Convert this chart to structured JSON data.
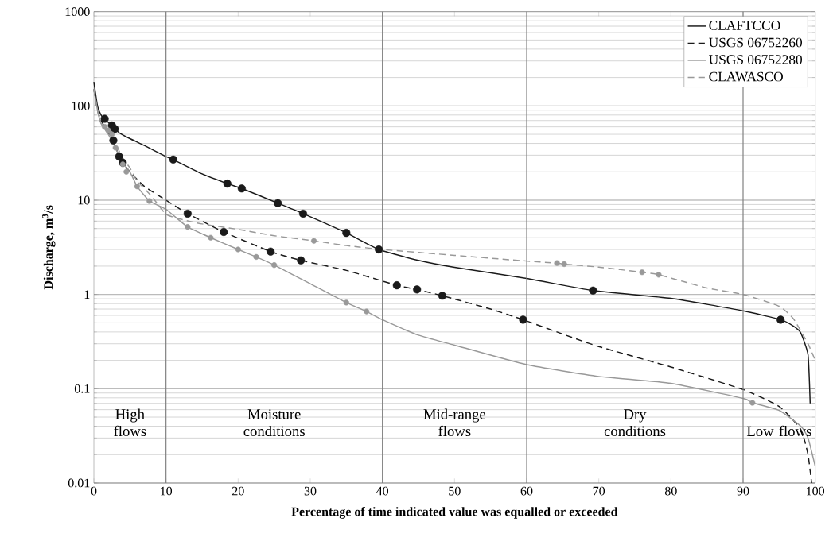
{
  "chart_data": {
    "type": "line",
    "xlabel": "Percentage of time indicated value was equalled or exceeded",
    "ylabel": "Discharge, m$^{3}$/s",
    "xlim": [
      0,
      100
    ],
    "xticks": [
      0,
      10,
      20,
      30,
      40,
      50,
      60,
      70,
      80,
      90,
      100
    ],
    "ylim": [
      0.01,
      1000
    ],
    "yticks": [
      0.01,
      0.1,
      1,
      10,
      100,
      1000
    ],
    "log": "y",
    "grid": "y",
    "legend": "top right",
    "marker": "none",
    "series": [
      {
        "name": "CLAFTCCO",
        "color": "#1a1a1a",
        "line_style": "solid",
        "x": [
          0,
          0.5,
          1,
          1.5,
          2.5,
          3,
          3.5,
          5,
          7,
          10,
          11,
          15,
          18.5,
          20.5,
          25.5,
          29,
          35,
          39.5,
          45,
          50,
          60,
          69.2,
          80,
          90,
          95.2,
          97,
          98,
          99,
          99.3
        ],
        "values": [
          180,
          100,
          80,
          72,
          62,
          57,
          52,
          45,
          38,
          29,
          27,
          19,
          15,
          13.3,
          9.3,
          7.2,
          4.5,
          3.0,
          2.3,
          1.94,
          1.48,
          1.1,
          0.91,
          0.67,
          0.54,
          0.46,
          0.39,
          0.23,
          0.07
        ]
      },
      {
        "name": "USGS 06752260",
        "color": "#1a1a1a",
        "line_style": "dashed",
        "x": [
          0,
          0.5,
          1,
          2,
          2.7,
          3.5,
          4,
          5,
          7,
          10,
          13,
          18,
          24.5,
          28.7,
          35,
          42,
          44.8,
          48.3,
          55,
          59.5,
          65,
          70,
          80,
          90,
          95,
          98,
          99,
          99.5
        ],
        "values": [
          150,
          90,
          70,
          52,
          43,
          29,
          25,
          20,
          14,
          10,
          7.2,
          4.6,
          2.85,
          2.3,
          1.8,
          1.25,
          1.13,
          0.97,
          0.7,
          0.54,
          0.38,
          0.28,
          0.17,
          0.098,
          0.065,
          0.037,
          0.02,
          0.01
        ]
      },
      {
        "name": "USGS 06752280",
        "color": "#999999",
        "line_style": "solid",
        "x": [
          0,
          0.5,
          1,
          2,
          3,
          4,
          5,
          6,
          7.7,
          10,
          13,
          16.2,
          20,
          22.5,
          25,
          30,
          35,
          37.8,
          40,
          45,
          50,
          60,
          70,
          80,
          90,
          91.3,
          95,
          98,
          99,
          100
        ],
        "values": [
          150,
          90,
          65,
          50,
          36,
          25,
          20,
          14,
          9.8,
          8,
          5.2,
          4.0,
          3.0,
          2.5,
          2.05,
          1.3,
          0.82,
          0.66,
          0.54,
          0.37,
          0.29,
          0.18,
          0.135,
          0.114,
          0.079,
          0.071,
          0.059,
          0.04,
          0.03,
          0.015
        ]
      },
      {
        "name": "CLAWASCO",
        "color": "#999999",
        "line_style": "dashed",
        "x": [
          0,
          0.5,
          1,
          1.5,
          2,
          2.5,
          3,
          4,
          5,
          6,
          8,
          10,
          12,
          15,
          20,
          25,
          30.5,
          35,
          40,
          50,
          60,
          64.2,
          65.2,
          70,
          76,
          78.3,
          85,
          90,
          95,
          97,
          99,
          100
        ],
        "values": [
          150,
          90,
          65,
          60,
          55,
          50,
          40,
          28,
          22,
          16,
          11,
          7.1,
          6.3,
          5.6,
          4.9,
          4.2,
          3.7,
          3.3,
          3.0,
          2.6,
          2.26,
          2.15,
          2.1,
          1.95,
          1.72,
          1.62,
          1.17,
          1.0,
          0.75,
          0.55,
          0.3,
          0.2
        ]
      },
      {
        "type": "scatter",
        "marker": "circle",
        "color": "#1a1a1a",
        "x": [
          1.5,
          2.5,
          2.9,
          2.7,
          3.5,
          4,
          11,
          18.5,
          20.5,
          25.5,
          29,
          35,
          39.5,
          13,
          18,
          24.5,
          28.7,
          42,
          44.8,
          48.3,
          59.5,
          69.2,
          95.2
        ],
        "values": [
          73,
          62,
          57,
          43,
          29,
          25,
          27,
          15,
          13.3,
          9.3,
          7.2,
          4.5,
          3.0,
          7.2,
          4.6,
          2.85,
          2.3,
          1.25,
          1.13,
          0.97,
          0.54,
          1.1,
          0.54
        ]
      },
      {
        "type": "scatter",
        "marker": "circle",
        "color": "#999999",
        "x": [
          1.5,
          2,
          2.5,
          3,
          4,
          4.5,
          6,
          7.7,
          13,
          16.2,
          20,
          22.5,
          25,
          35,
          37.8,
          30.5,
          64.2,
          65.2,
          76,
          78.3,
          91.3
        ],
        "values": [
          60,
          55,
          50,
          36,
          24,
          20,
          14,
          9.8,
          5.2,
          4.0,
          3.0,
          2.5,
          2.05,
          0.82,
          0.66,
          3.7,
          2.15,
          2.1,
          1.72,
          1.62,
          0.071
        ]
      }
    ],
    "ref_lines": [
      {
        "axis": "x",
        "value": 10,
        "color": "#808080"
      },
      {
        "axis": "x",
        "value": 40,
        "color": "#808080"
      },
      {
        "axis": "x",
        "value": 60,
        "color": "#808080"
      },
      {
        "axis": "x",
        "value": 90,
        "color": "#808080"
      }
    ],
    "annotations": [
      "High flows",
      "Moisture conditions",
      "Mid-range flows",
      "Dry conditions",
      "Low flows"
    ]
  }
}
